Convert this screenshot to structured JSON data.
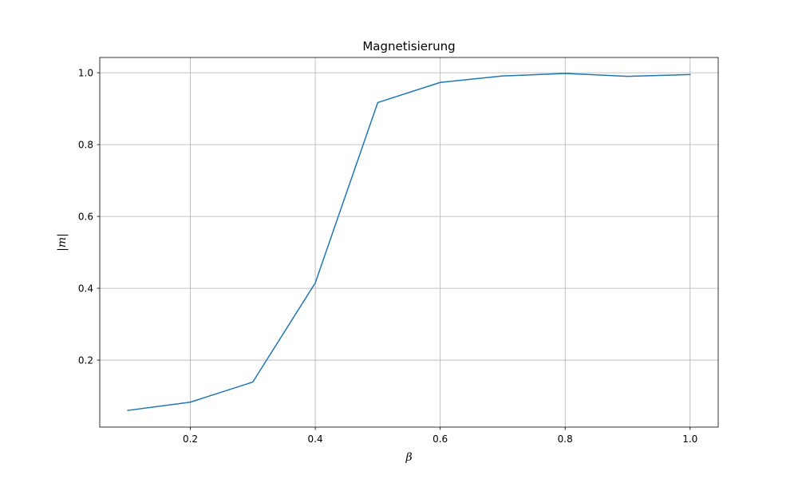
{
  "chart_data": {
    "type": "line",
    "title": "Magnetisierung",
    "xlabel": "β",
    "ylabel": "|m|",
    "xlim": [
      0.055,
      1.045
    ],
    "ylim": [
      0.0135,
      1.0425
    ],
    "xticks": [
      0.2,
      0.4,
      0.6,
      0.8,
      1.0
    ],
    "xtick_labels": [
      "0.2",
      "0.4",
      "0.6",
      "0.8",
      "1.0"
    ],
    "yticks": [
      0.2,
      0.4,
      0.6,
      0.8,
      1.0
    ],
    "ytick_labels": [
      "0.2",
      "0.4",
      "0.6",
      "0.8",
      "1.0"
    ],
    "grid": true,
    "series": [
      {
        "color": "#1f77b4",
        "x": [
          0.1,
          0.2,
          0.3,
          0.4,
          0.5,
          0.6,
          0.7,
          0.8,
          0.9,
          1.0
        ],
        "y": [
          0.06,
          0.083,
          0.139,
          0.415,
          0.917,
          0.973,
          0.991,
          0.998,
          0.99,
          0.995
        ]
      }
    ]
  }
}
